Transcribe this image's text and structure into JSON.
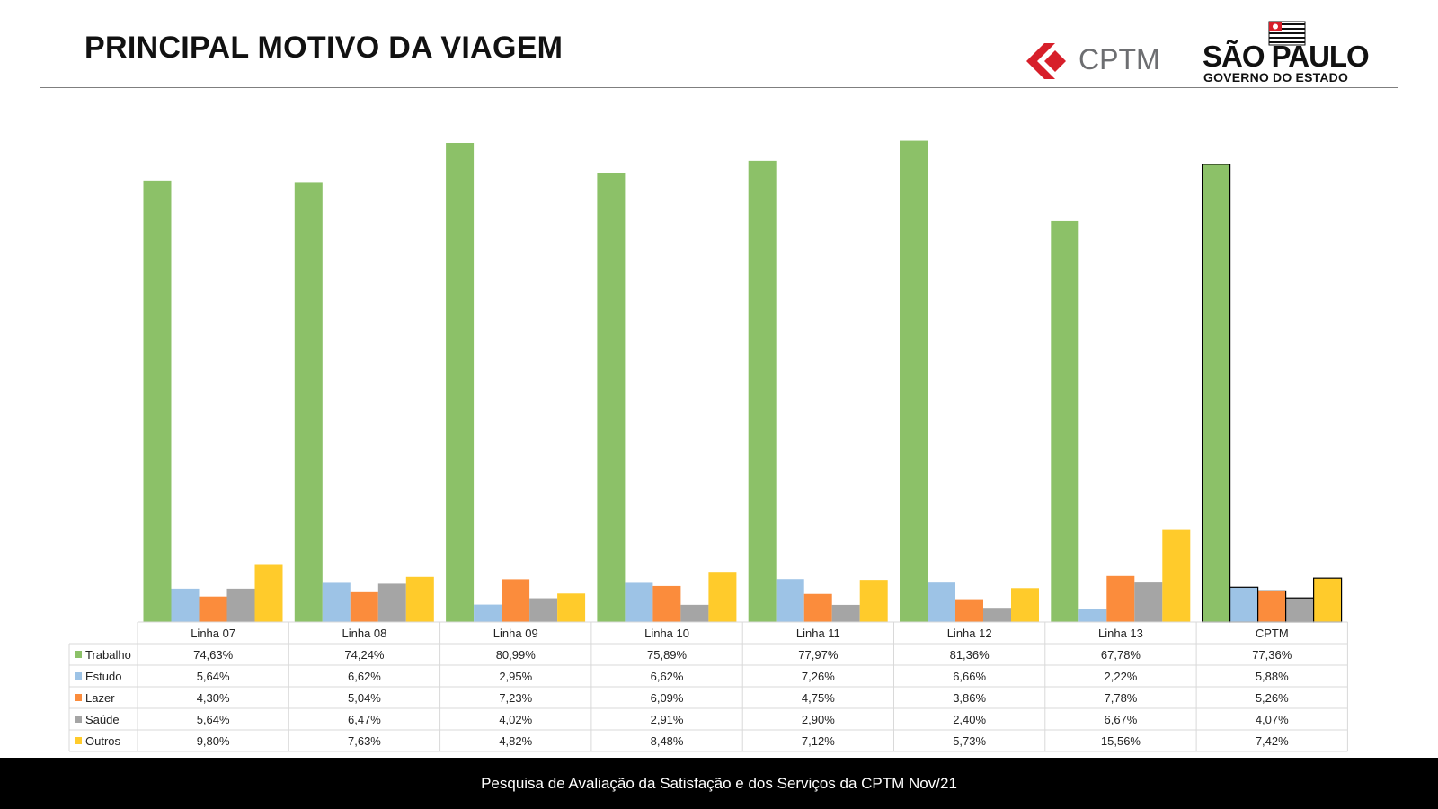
{
  "header": {
    "title": "PRINCIPAL MOTIVO DA VIAGEM",
    "logo_cptm": "CPTM",
    "logo_sp": "SÃO PAULO",
    "logo_sp_sub": "GOVERNO DO ESTADO"
  },
  "footer": {
    "text": "Pesquisa de Avaliação da Satisfação e dos Serviços da CPTM Nov/21"
  },
  "chart_data": {
    "type": "bar",
    "categories": [
      "Linha 07",
      "Linha 08",
      "Linha 09",
      "Linha 10",
      "Linha 11",
      "Linha 12",
      "Linha 13",
      "CPTM"
    ],
    "series": [
      {
        "name": "Trabalho",
        "color": "#8cc168",
        "values": [
          74.63,
          74.24,
          80.99,
          75.89,
          77.97,
          81.36,
          67.78,
          77.36
        ],
        "labels": [
          "74,63%",
          "74,24%",
          "80,99%",
          "75,89%",
          "77,97%",
          "81,36%",
          "67,78%",
          "77,36%"
        ]
      },
      {
        "name": "Estudo",
        "color": "#9dc3e6",
        "values": [
          5.64,
          6.62,
          2.95,
          6.62,
          7.26,
          6.66,
          2.22,
          5.88
        ],
        "labels": [
          "5,64%",
          "6,62%",
          "2,95%",
          "6,62%",
          "7,26%",
          "6,66%",
          "2,22%",
          "5,88%"
        ]
      },
      {
        "name": "Lazer",
        "color": "#fb8c3c",
        "values": [
          4.3,
          5.04,
          7.23,
          6.09,
          4.75,
          3.86,
          7.78,
          5.26
        ],
        "labels": [
          "4,30%",
          "5,04%",
          "7,23%",
          "6,09%",
          "4,75%",
          "3,86%",
          "7,78%",
          "5,26%"
        ]
      },
      {
        "name": "Saúde",
        "color": "#a5a5a5",
        "values": [
          5.64,
          6.47,
          4.02,
          2.91,
          2.9,
          2.4,
          6.67,
          4.07
        ],
        "labels": [
          "5,64%",
          "6,47%",
          "4,02%",
          "2,91%",
          "2,90%",
          "2,40%",
          "6,67%",
          "4,07%"
        ]
      },
      {
        "name": "Outros",
        "color": "#ffcb2b",
        "values": [
          9.8,
          7.63,
          4.82,
          8.48,
          7.12,
          5.73,
          15.56,
          7.42
        ],
        "labels": [
          "9,80%",
          "7,63%",
          "4,82%",
          "8,48%",
          "7,12%",
          "5,73%",
          "15,56%",
          "7,42%"
        ]
      }
    ],
    "highlighted_category": "CPTM",
    "ylim": [
      0,
      80.99
    ],
    "grid": false,
    "legend": "data table below chart"
  }
}
